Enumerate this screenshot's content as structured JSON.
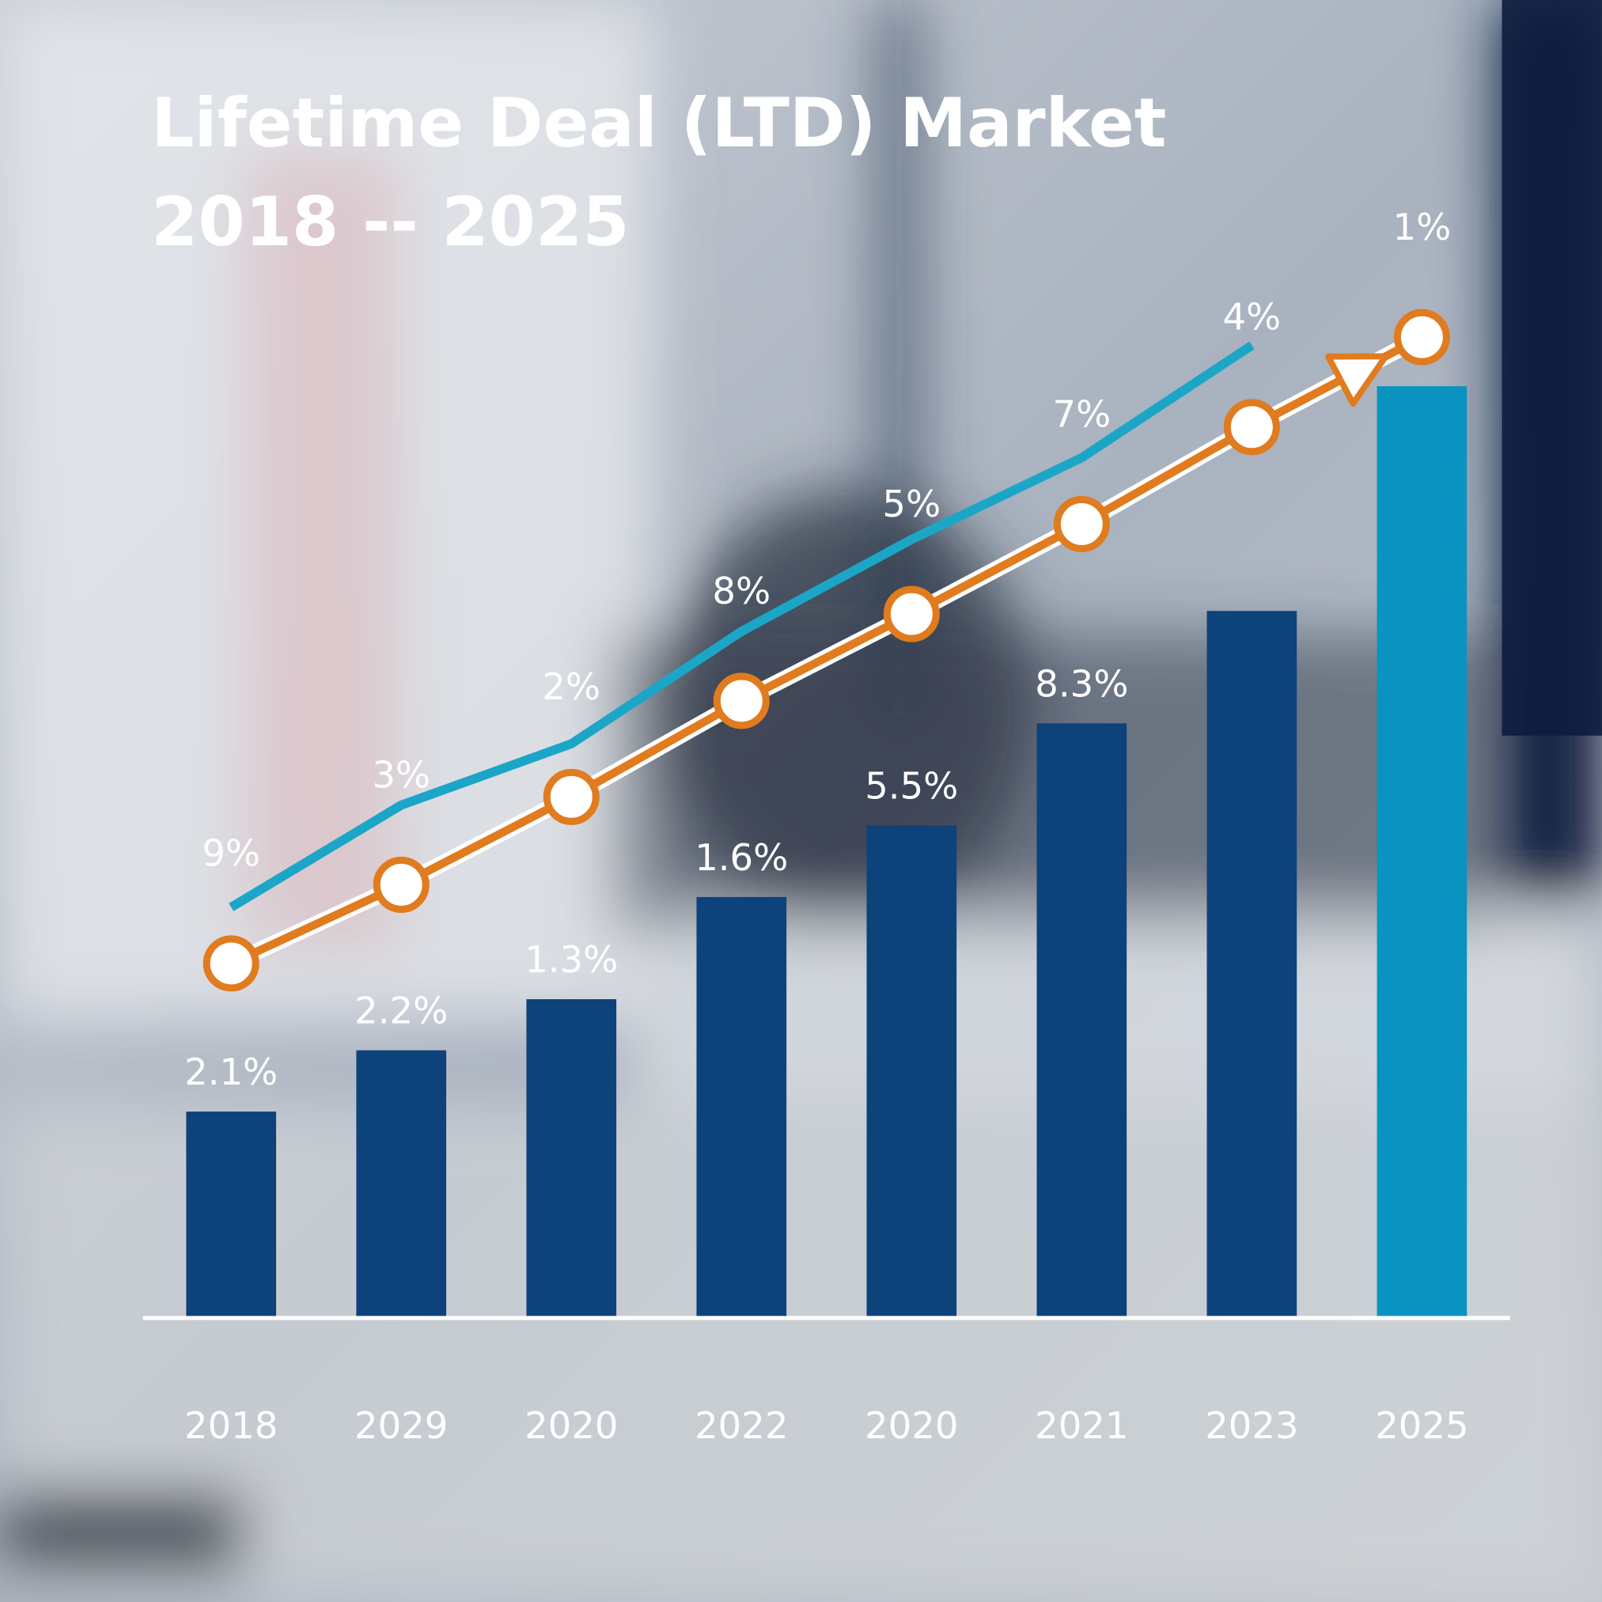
{
  "chart_data": {
    "type": "bar",
    "title": "Lifetime Deal (LTD) Market",
    "subtitle": "2018 -- 2025",
    "categories": [
      "2018",
      "2029",
      "2020",
      "2022",
      "2020",
      "2021",
      "2023",
      "2025"
    ],
    "values": [
      20,
      26,
      31,
      41,
      48,
      58,
      69,
      91
    ],
    "colors": [
      "#0d427a",
      "#0d427a",
      "#0d427a",
      "#0d427a",
      "#0d427a",
      "#0d427a",
      "#0d427a",
      "#0a93c0"
    ],
    "bar_labels": [
      "2.1%",
      "2.2%",
      "1.3%",
      "1.6%",
      "5.5%",
      "8.3%",
      null,
      null
    ],
    "ylim": [
      0,
      100
    ],
    "lines": [
      {
        "color": "#e07b1f",
        "values": [
          34.5,
          42.2,
          50.8,
          60.2,
          68.7,
          77.5,
          87,
          95.8
        ],
        "markers": true,
        "arrow": true,
        "labels": [
          "9%",
          "3%",
          "2%",
          "8%",
          "5%",
          "7%",
          "4%",
          "1%"
        ]
      },
      {
        "color": "#1ba6c8",
        "values": [
          40,
          50,
          56,
          67,
          76,
          84,
          95,
          null
        ]
      }
    ]
  }
}
